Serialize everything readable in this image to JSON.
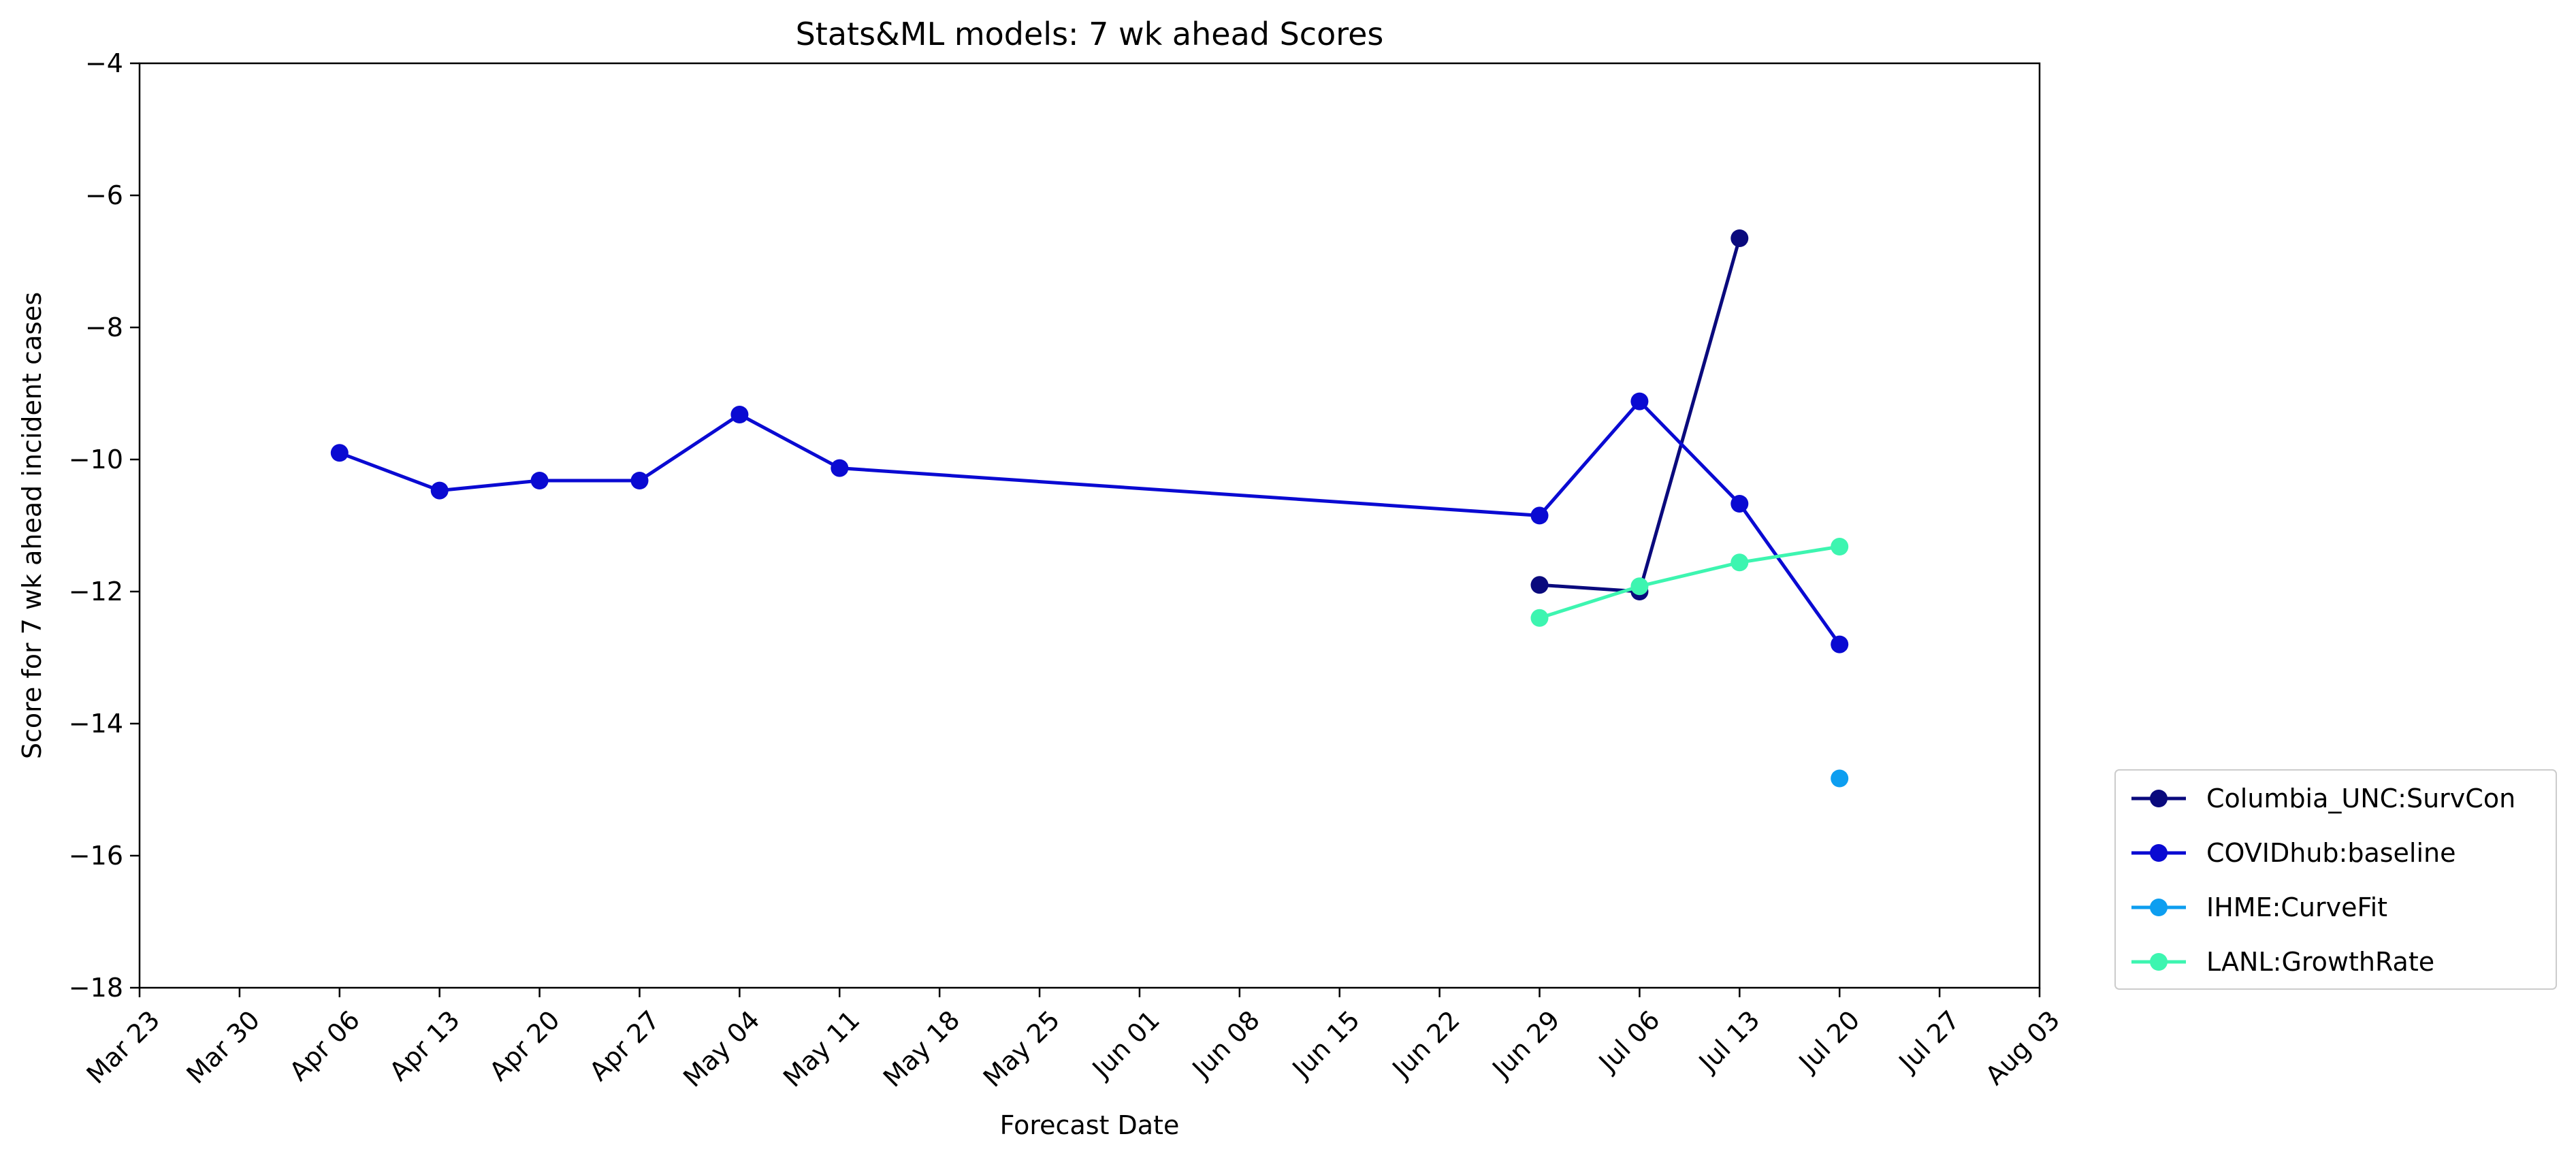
{
  "chart_data": {
    "type": "line",
    "title": "Stats&ML models: 7 wk ahead Scores",
    "xlabel": "Forecast Date",
    "ylabel": "Score for 7 wk ahead incident cases",
    "ylim": [
      -18,
      -4
    ],
    "yticks": [
      -18,
      -16,
      -14,
      -12,
      -10,
      -8,
      -6,
      -4
    ],
    "xlim": [
      "2020-03-23",
      "2020-08-03"
    ],
    "xticks": [
      {
        "date": "2020-03-23",
        "label": "Mar 23"
      },
      {
        "date": "2020-03-30",
        "label": "Mar 30"
      },
      {
        "date": "2020-04-06",
        "label": "Apr 06"
      },
      {
        "date": "2020-04-13",
        "label": "Apr 13"
      },
      {
        "date": "2020-04-20",
        "label": "Apr 20"
      },
      {
        "date": "2020-04-27",
        "label": "Apr 27"
      },
      {
        "date": "2020-05-04",
        "label": "May 04"
      },
      {
        "date": "2020-05-11",
        "label": "May 11"
      },
      {
        "date": "2020-05-18",
        "label": "May 18"
      },
      {
        "date": "2020-05-25",
        "label": "May 25"
      },
      {
        "date": "2020-06-01",
        "label": "Jun 01"
      },
      {
        "date": "2020-06-08",
        "label": "Jun 08"
      },
      {
        "date": "2020-06-15",
        "label": "Jun 15"
      },
      {
        "date": "2020-06-22",
        "label": "Jun 22"
      },
      {
        "date": "2020-06-29",
        "label": "Jun 29"
      },
      {
        "date": "2020-07-06",
        "label": "Jul 06"
      },
      {
        "date": "2020-07-13",
        "label": "Jul 13"
      },
      {
        "date": "2020-07-20",
        "label": "Jul 20"
      },
      {
        "date": "2020-07-27",
        "label": "Jul 27"
      },
      {
        "date": "2020-08-03",
        "label": "Aug 03"
      }
    ],
    "grid": false,
    "legend_position": "outside-right-bottom",
    "series": [
      {
        "name": "Columbia_UNC:SurvCon",
        "color": "#0a0a7d",
        "points": [
          {
            "x": "2020-06-29",
            "y": -11.9
          },
          {
            "x": "2020-07-06",
            "y": -12.0
          },
          {
            "x": "2020-07-13",
            "y": -6.65
          }
        ]
      },
      {
        "name": "COVIDhub:baseline",
        "color": "#0a0ad2",
        "points": [
          {
            "x": "2020-04-06",
            "y": -9.9
          },
          {
            "x": "2020-04-13",
            "y": -10.47
          },
          {
            "x": "2020-04-20",
            "y": -10.32
          },
          {
            "x": "2020-04-27",
            "y": -10.32
          },
          {
            "x": "2020-05-04",
            "y": -9.32
          },
          {
            "x": "2020-05-11",
            "y": -10.13
          },
          {
            "x": "2020-06-29",
            "y": -10.85
          },
          {
            "x": "2020-07-06",
            "y": -9.12
          },
          {
            "x": "2020-07-13",
            "y": -10.67
          },
          {
            "x": "2020-07-20",
            "y": -12.8
          }
        ]
      },
      {
        "name": "IHME:CurveFit",
        "color": "#0d9ef0",
        "points": [
          {
            "x": "2020-07-20",
            "y": -14.83
          }
        ]
      },
      {
        "name": "LANL:GrowthRate",
        "color": "#3df5b0",
        "points": [
          {
            "x": "2020-06-29",
            "y": -12.4
          },
          {
            "x": "2020-07-06",
            "y": -11.92
          },
          {
            "x": "2020-07-13",
            "y": -11.56
          },
          {
            "x": "2020-07-20",
            "y": -11.32
          }
        ]
      }
    ]
  }
}
